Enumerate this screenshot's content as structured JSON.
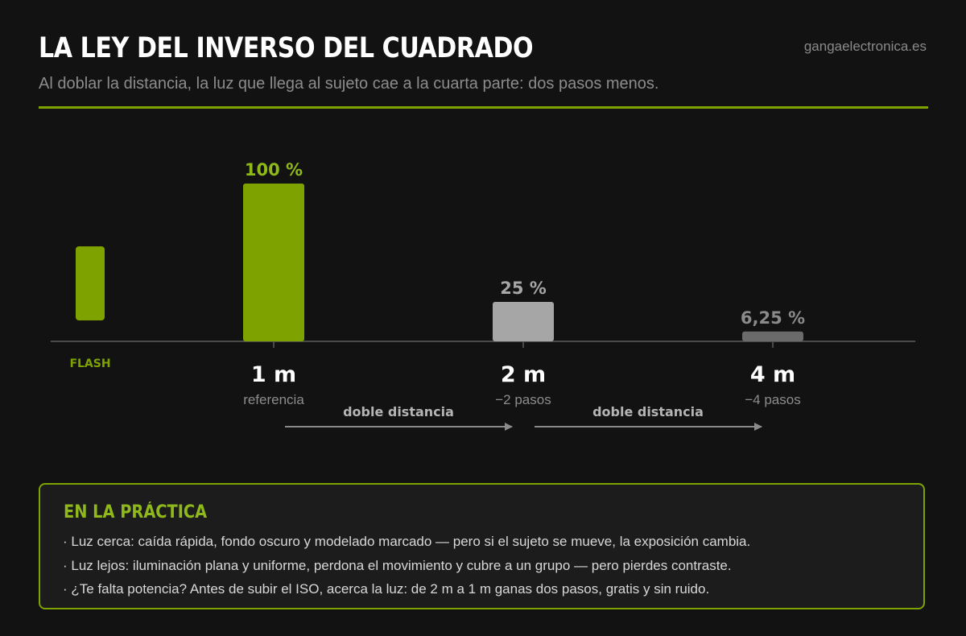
{
  "header": {
    "title": "LA LEY DEL INVERSO DEL CUADRADO",
    "brand": "gangaelectronica.es",
    "subtitle": "Al doblar la distancia, la luz que llega al sujeto cae a la cuarta parte: dos pasos menos."
  },
  "colors": {
    "accent": "#7ea300",
    "gray_bar_2m": "#a6a6a6",
    "gray_bar_4m": "#6b6b6b",
    "background": "#121212"
  },
  "chart_data": {
    "type": "bar",
    "source_label": "FLASH",
    "categories": [
      "1 m",
      "2 m",
      "4 m"
    ],
    "values": [
      100,
      25,
      6.25
    ],
    "value_labels": [
      "100 %",
      "25 %",
      "6,25 %"
    ],
    "sublabels": [
      "referencia",
      "−2 pasos",
      "−4 pasos"
    ],
    "arrows": [
      {
        "label": "doble distancia",
        "from": "1 m",
        "to": "2 m"
      },
      {
        "label": "doble distancia",
        "from": "2 m",
        "to": "4 m"
      }
    ],
    "ylim": [
      0,
      100
    ]
  },
  "practice": {
    "title": "EN LA PRÁCTICA",
    "items": [
      "· Luz cerca: caída rápida, fondo oscuro y modelado marcado — pero si el sujeto se mueve, la exposición cambia.",
      "· Luz lejos: iluminación plana y uniforme, perdona el movimiento y cubre a un grupo — pero pierdes contraste.",
      "· ¿Te falta potencia? Antes de subir el ISO, acerca la luz: de 2 m a 1 m ganas dos pasos, gratis y sin ruido."
    ]
  }
}
